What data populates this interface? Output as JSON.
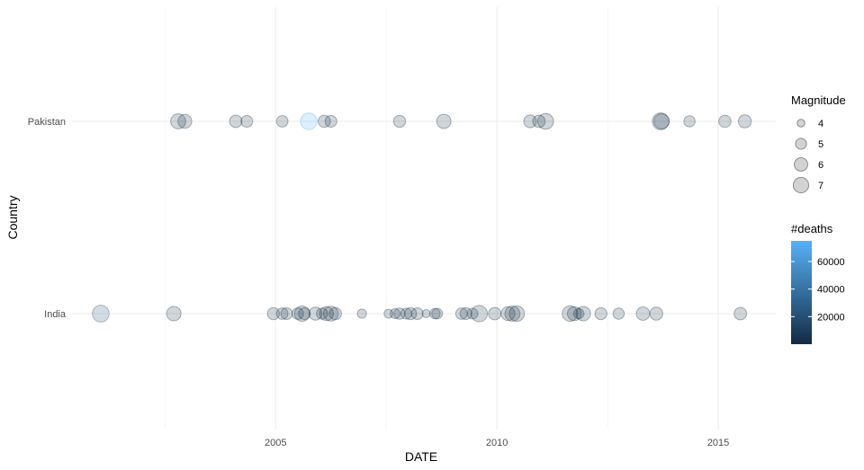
{
  "chart_data": {
    "type": "scatter",
    "xlabel": "DATE",
    "ylabel": "Country",
    "xlim": [
      2000.4,
      2016.3
    ],
    "x_ticks": [
      2005,
      2010,
      2015
    ],
    "x_tick_labels": [
      "2005",
      "2010",
      "2015"
    ],
    "categories": [
      "Pakistan",
      "India"
    ],
    "grid": true,
    "legend_position": "right",
    "size_legend": {
      "title": "Magnitude",
      "levels": [
        4,
        5,
        6,
        7
      ],
      "labels": [
        "4",
        "5",
        "6",
        "7"
      ]
    },
    "color_legend": {
      "title": "#deaths",
      "ticks": [
        20000,
        40000,
        60000
      ],
      "labels": [
        "20000",
        "40000",
        "60000"
      ],
      "range": [
        0,
        75000
      ],
      "low_color": "#132B43",
      "high_color": "#56B1F7"
    },
    "points": [
      {
        "country": "Pakistan",
        "x": 2002.8,
        "magnitude": 6.8,
        "deaths": 20
      },
      {
        "country": "Pakistan",
        "x": 2002.95,
        "magnitude": 6.2,
        "deaths": 15
      },
      {
        "country": "Pakistan",
        "x": 2004.1,
        "magnitude": 5.6,
        "deaths": 10
      },
      {
        "country": "Pakistan",
        "x": 2004.35,
        "magnitude": 5.3,
        "deaths": 5
      },
      {
        "country": "Pakistan",
        "x": 2005.15,
        "magnitude": 5.2,
        "deaths": 0
      },
      {
        "country": "Pakistan",
        "x": 2005.75,
        "magnitude": 7.6,
        "deaths": 73000
      },
      {
        "country": "Pakistan",
        "x": 2006.1,
        "magnitude": 5.5,
        "deaths": 5
      },
      {
        "country": "Pakistan",
        "x": 2006.25,
        "magnitude": 5.3,
        "deaths": 0
      },
      {
        "country": "Pakistan",
        "x": 2007.8,
        "magnitude": 5.4,
        "deaths": 5
      },
      {
        "country": "Pakistan",
        "x": 2008.8,
        "magnitude": 6.4,
        "deaths": 215
      },
      {
        "country": "Pakistan",
        "x": 2010.75,
        "magnitude": 5.7,
        "deaths": 5
      },
      {
        "country": "Pakistan",
        "x": 2010.95,
        "magnitude": 5.6,
        "deaths": 0
      },
      {
        "country": "Pakistan",
        "x": 2011.1,
        "magnitude": 7.2,
        "deaths": 3
      },
      {
        "country": "Pakistan",
        "x": 2013.7,
        "magnitude": 7.7,
        "deaths": 825
      },
      {
        "country": "Pakistan",
        "x": 2013.72,
        "magnitude": 6.8,
        "deaths": 400
      },
      {
        "country": "Pakistan",
        "x": 2014.35,
        "magnitude": 5.1,
        "deaths": 0
      },
      {
        "country": "Pakistan",
        "x": 2015.15,
        "magnitude": 5.5,
        "deaths": 0
      },
      {
        "country": "Pakistan",
        "x": 2015.6,
        "magnitude": 5.8,
        "deaths": 5
      },
      {
        "country": "India",
        "x": 2001.05,
        "magnitude": 7.7,
        "deaths": 20005
      },
      {
        "country": "India",
        "x": 2002.7,
        "magnitude": 6.5,
        "deaths": 15
      },
      {
        "country": "India",
        "x": 2004.95,
        "magnitude": 5.4,
        "deaths": 0
      },
      {
        "country": "India",
        "x": 2005.15,
        "magnitude": 5.2,
        "deaths": 0
      },
      {
        "country": "India",
        "x": 2005.25,
        "magnitude": 5.3,
        "deaths": 5
      },
      {
        "country": "India",
        "x": 2005.5,
        "magnitude": 5.2,
        "deaths": 0
      },
      {
        "country": "India",
        "x": 2005.6,
        "magnitude": 6.9,
        "deaths": 0
      },
      {
        "country": "India",
        "x": 2005.65,
        "magnitude": 5.3,
        "deaths": 10
      },
      {
        "country": "India",
        "x": 2005.9,
        "magnitude": 5.8,
        "deaths": 5
      },
      {
        "country": "India",
        "x": 2006.05,
        "magnitude": 5.1,
        "deaths": 0
      },
      {
        "country": "India",
        "x": 2006.15,
        "magnitude": 6.2,
        "deaths": 15
      },
      {
        "country": "India",
        "x": 2006.25,
        "magnitude": 6.7,
        "deaths": 0
      },
      {
        "country": "India",
        "x": 2006.35,
        "magnitude": 5.5,
        "deaths": 0
      },
      {
        "country": "India",
        "x": 2006.95,
        "magnitude": 4.4,
        "deaths": 0
      },
      {
        "country": "India",
        "x": 2007.55,
        "magnitude": 4.3,
        "deaths": 0
      },
      {
        "country": "India",
        "x": 2007.7,
        "magnitude": 4.6,
        "deaths": 0
      },
      {
        "country": "India",
        "x": 2007.8,
        "magnitude": 5.1,
        "deaths": 0
      },
      {
        "country": "India",
        "x": 2007.95,
        "magnitude": 5.0,
        "deaths": 5
      },
      {
        "country": "India",
        "x": 2008.05,
        "magnitude": 5.4,
        "deaths": 0
      },
      {
        "country": "India",
        "x": 2008.2,
        "magnitude": 5.3,
        "deaths": 5
      },
      {
        "country": "India",
        "x": 2008.4,
        "magnitude": 4.1,
        "deaths": 0
      },
      {
        "country": "India",
        "x": 2008.6,
        "magnitude": 4.8,
        "deaths": 0
      },
      {
        "country": "India",
        "x": 2008.65,
        "magnitude": 4.9,
        "deaths": 5
      },
      {
        "country": "India",
        "x": 2009.2,
        "magnitude": 5.2,
        "deaths": 0
      },
      {
        "country": "India",
        "x": 2009.3,
        "magnitude": 5.3,
        "deaths": 0
      },
      {
        "country": "India",
        "x": 2009.45,
        "magnitude": 4.9,
        "deaths": 0
      },
      {
        "country": "India",
        "x": 2009.6,
        "magnitude": 7.5,
        "deaths": 0
      },
      {
        "country": "India",
        "x": 2009.95,
        "magnitude": 5.6,
        "deaths": 0
      },
      {
        "country": "India",
        "x": 2010.25,
        "magnitude": 6.2,
        "deaths": 0
      },
      {
        "country": "India",
        "x": 2010.35,
        "magnitude": 6.8,
        "deaths": 0
      },
      {
        "country": "India",
        "x": 2010.45,
        "magnitude": 6.9,
        "deaths": 5
      },
      {
        "country": "India",
        "x": 2011.65,
        "magnitude": 7.0,
        "deaths": 5
      },
      {
        "country": "India",
        "x": 2011.75,
        "magnitude": 6.3,
        "deaths": 0
      },
      {
        "country": "India",
        "x": 2011.85,
        "magnitude": 4.8,
        "deaths": 0
      },
      {
        "country": "India",
        "x": 2011.95,
        "magnitude": 6.5,
        "deaths": 0
      },
      {
        "country": "India",
        "x": 2012.35,
        "magnitude": 5.4,
        "deaths": 0
      },
      {
        "country": "India",
        "x": 2012.75,
        "magnitude": 5.1,
        "deaths": 0
      },
      {
        "country": "India",
        "x": 2013.3,
        "magnitude": 6.0,
        "deaths": 5
      },
      {
        "country": "India",
        "x": 2013.6,
        "magnitude": 5.8,
        "deaths": 0
      },
      {
        "country": "India",
        "x": 2015.5,
        "magnitude": 5.6,
        "deaths": 0
      }
    ]
  }
}
